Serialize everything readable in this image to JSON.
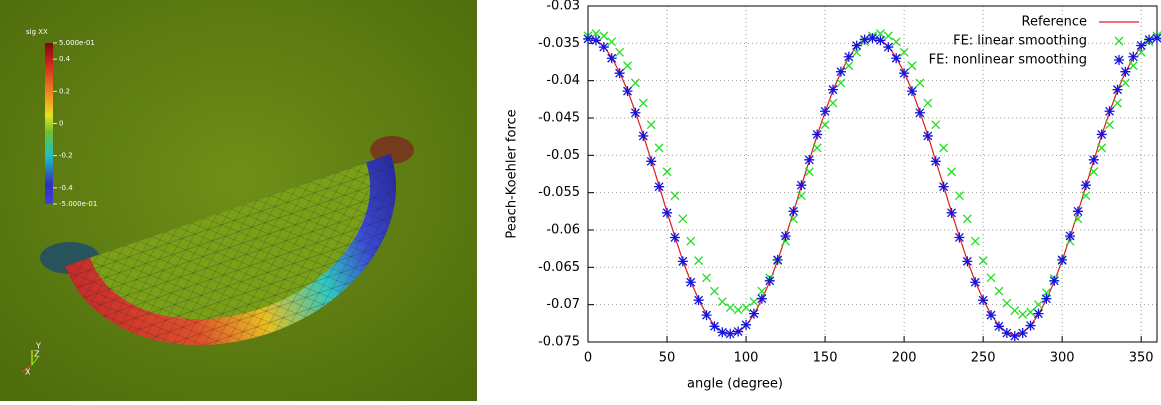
{
  "colorbar": {
    "title": "sig XX",
    "clim": [
      -0.5,
      0.5
    ],
    "ticks": [
      {
        "value": 0.5,
        "label": "5.000e-01"
      },
      0.4,
      0.2,
      0,
      -0.2,
      -0.4,
      {
        "value": -0.5,
        "label": "-5.000e-01"
      }
    ]
  },
  "axes_triad": {
    "x": "X",
    "y": "Y",
    "z": "Z"
  },
  "chart_data": {
    "type": "line",
    "xlabel": "angle (degree)",
    "ylabel": "Peach-Koehler force",
    "xlim": [
      0,
      360
    ],
    "xticks": [
      0,
      50,
      100,
      150,
      200,
      250,
      300,
      350
    ],
    "ylim": [
      -0.075,
      -0.03
    ],
    "yticks": [
      -0.075,
      -0.07,
      -0.065,
      -0.06,
      -0.055,
      -0.05,
      -0.045,
      -0.04,
      -0.035,
      -0.03
    ],
    "grid": true,
    "legend": "top-right",
    "x": [
      0,
      5,
      10,
      15,
      20,
      25,
      30,
      35,
      40,
      45,
      50,
      55,
      60,
      65,
      70,
      75,
      80,
      85,
      90,
      95,
      100,
      105,
      110,
      115,
      120,
      125,
      130,
      135,
      140,
      145,
      150,
      155,
      160,
      165,
      170,
      175,
      180,
      185,
      190,
      195,
      200,
      205,
      210,
      215,
      220,
      225,
      230,
      235,
      240,
      245,
      250,
      255,
      260,
      265,
      270,
      275,
      280,
      285,
      290,
      295,
      300,
      305,
      310,
      315,
      320,
      325,
      330,
      335,
      340,
      345,
      350,
      355,
      360
    ],
    "series": [
      {
        "name": "Reference",
        "color": "#e41a1c",
        "style": "line",
        "values": [
          -0.0342,
          -0.0345,
          -0.0354,
          -0.0369,
          -0.0389,
          -0.0413,
          -0.0442,
          -0.0473,
          -0.0507,
          -0.0541,
          -0.0576,
          -0.0609,
          -0.0641,
          -0.0669,
          -0.0693,
          -0.0713,
          -0.0728,
          -0.0737,
          -0.074,
          -0.0737,
          -0.0728,
          -0.0713,
          -0.0693,
          -0.0669,
          -0.0641,
          -0.0609,
          -0.0576,
          -0.0541,
          -0.0507,
          -0.0473,
          -0.0442,
          -0.0413,
          -0.0389,
          -0.0369,
          -0.0354,
          -0.0345,
          -0.0342,
          -0.0345,
          -0.0354,
          -0.0369,
          -0.0389,
          -0.0413,
          -0.0442,
          -0.0473,
          -0.0507,
          -0.0541,
          -0.0576,
          -0.0609,
          -0.0641,
          -0.0669,
          -0.0693,
          -0.0713,
          -0.0728,
          -0.0737,
          -0.0743,
          -0.0737,
          -0.0728,
          -0.0713,
          -0.0693,
          -0.0669,
          -0.0641,
          -0.0609,
          -0.0576,
          -0.0541,
          -0.0507,
          -0.0473,
          -0.0442,
          -0.0413,
          -0.0389,
          -0.0369,
          -0.0354,
          -0.0345,
          -0.0342
        ]
      },
      {
        "name": "FE: linear smoothing",
        "color": "#22dd22",
        "style": "x",
        "values": [
          -0.034,
          -0.0337,
          -0.034,
          -0.0348,
          -0.0362,
          -0.038,
          -0.0403,
          -0.043,
          -0.0459,
          -0.049,
          -0.0522,
          -0.0554,
          -0.0585,
          -0.0615,
          -0.0641,
          -0.0664,
          -0.0682,
          -0.0696,
          -0.0704,
          -0.0707,
          -0.0704,
          -0.0696,
          -0.0682,
          -0.0664,
          -0.0641,
          -0.0615,
          -0.0585,
          -0.0554,
          -0.0522,
          -0.049,
          -0.0459,
          -0.043,
          -0.0403,
          -0.038,
          -0.0362,
          -0.0348,
          -0.034,
          -0.0337,
          -0.034,
          -0.0348,
          -0.0362,
          -0.038,
          -0.0403,
          -0.043,
          -0.0459,
          -0.049,
          -0.0522,
          -0.0554,
          -0.0585,
          -0.0615,
          -0.0641,
          -0.0664,
          -0.0682,
          -0.0698,
          -0.0708,
          -0.0713,
          -0.071,
          -0.07,
          -0.0684,
          -0.0665,
          -0.0641,
          -0.0615,
          -0.0585,
          -0.0554,
          -0.0522,
          -0.049,
          -0.0459,
          -0.043,
          -0.0403,
          -0.038,
          -0.0362,
          -0.0348,
          -0.034
        ]
      },
      {
        "name": "FE: nonlinear smoothing",
        "color": "#1414e0",
        "style": "star",
        "values": [
          -0.0344,
          -0.0346,
          -0.0355,
          -0.037,
          -0.039,
          -0.0414,
          -0.0443,
          -0.0474,
          -0.0508,
          -0.0542,
          -0.0577,
          -0.061,
          -0.0642,
          -0.067,
          -0.0694,
          -0.0714,
          -0.0729,
          -0.0737,
          -0.0739,
          -0.0736,
          -0.0727,
          -0.0712,
          -0.0692,
          -0.0668,
          -0.064,
          -0.0608,
          -0.0575,
          -0.054,
          -0.0506,
          -0.0472,
          -0.0441,
          -0.0412,
          -0.0388,
          -0.0368,
          -0.0353,
          -0.0345,
          -0.0343,
          -0.0346,
          -0.0355,
          -0.037,
          -0.039,
          -0.0414,
          -0.0443,
          -0.0474,
          -0.0508,
          -0.0542,
          -0.0577,
          -0.061,
          -0.0642,
          -0.067,
          -0.0694,
          -0.0714,
          -0.0729,
          -0.0738,
          -0.0742,
          -0.0738,
          -0.0728,
          -0.0712,
          -0.0692,
          -0.0668,
          -0.064,
          -0.0608,
          -0.0575,
          -0.054,
          -0.0506,
          -0.0472,
          -0.0441,
          -0.0412,
          -0.0388,
          -0.0368,
          -0.0353,
          -0.0345,
          -0.0343
        ]
      }
    ]
  }
}
